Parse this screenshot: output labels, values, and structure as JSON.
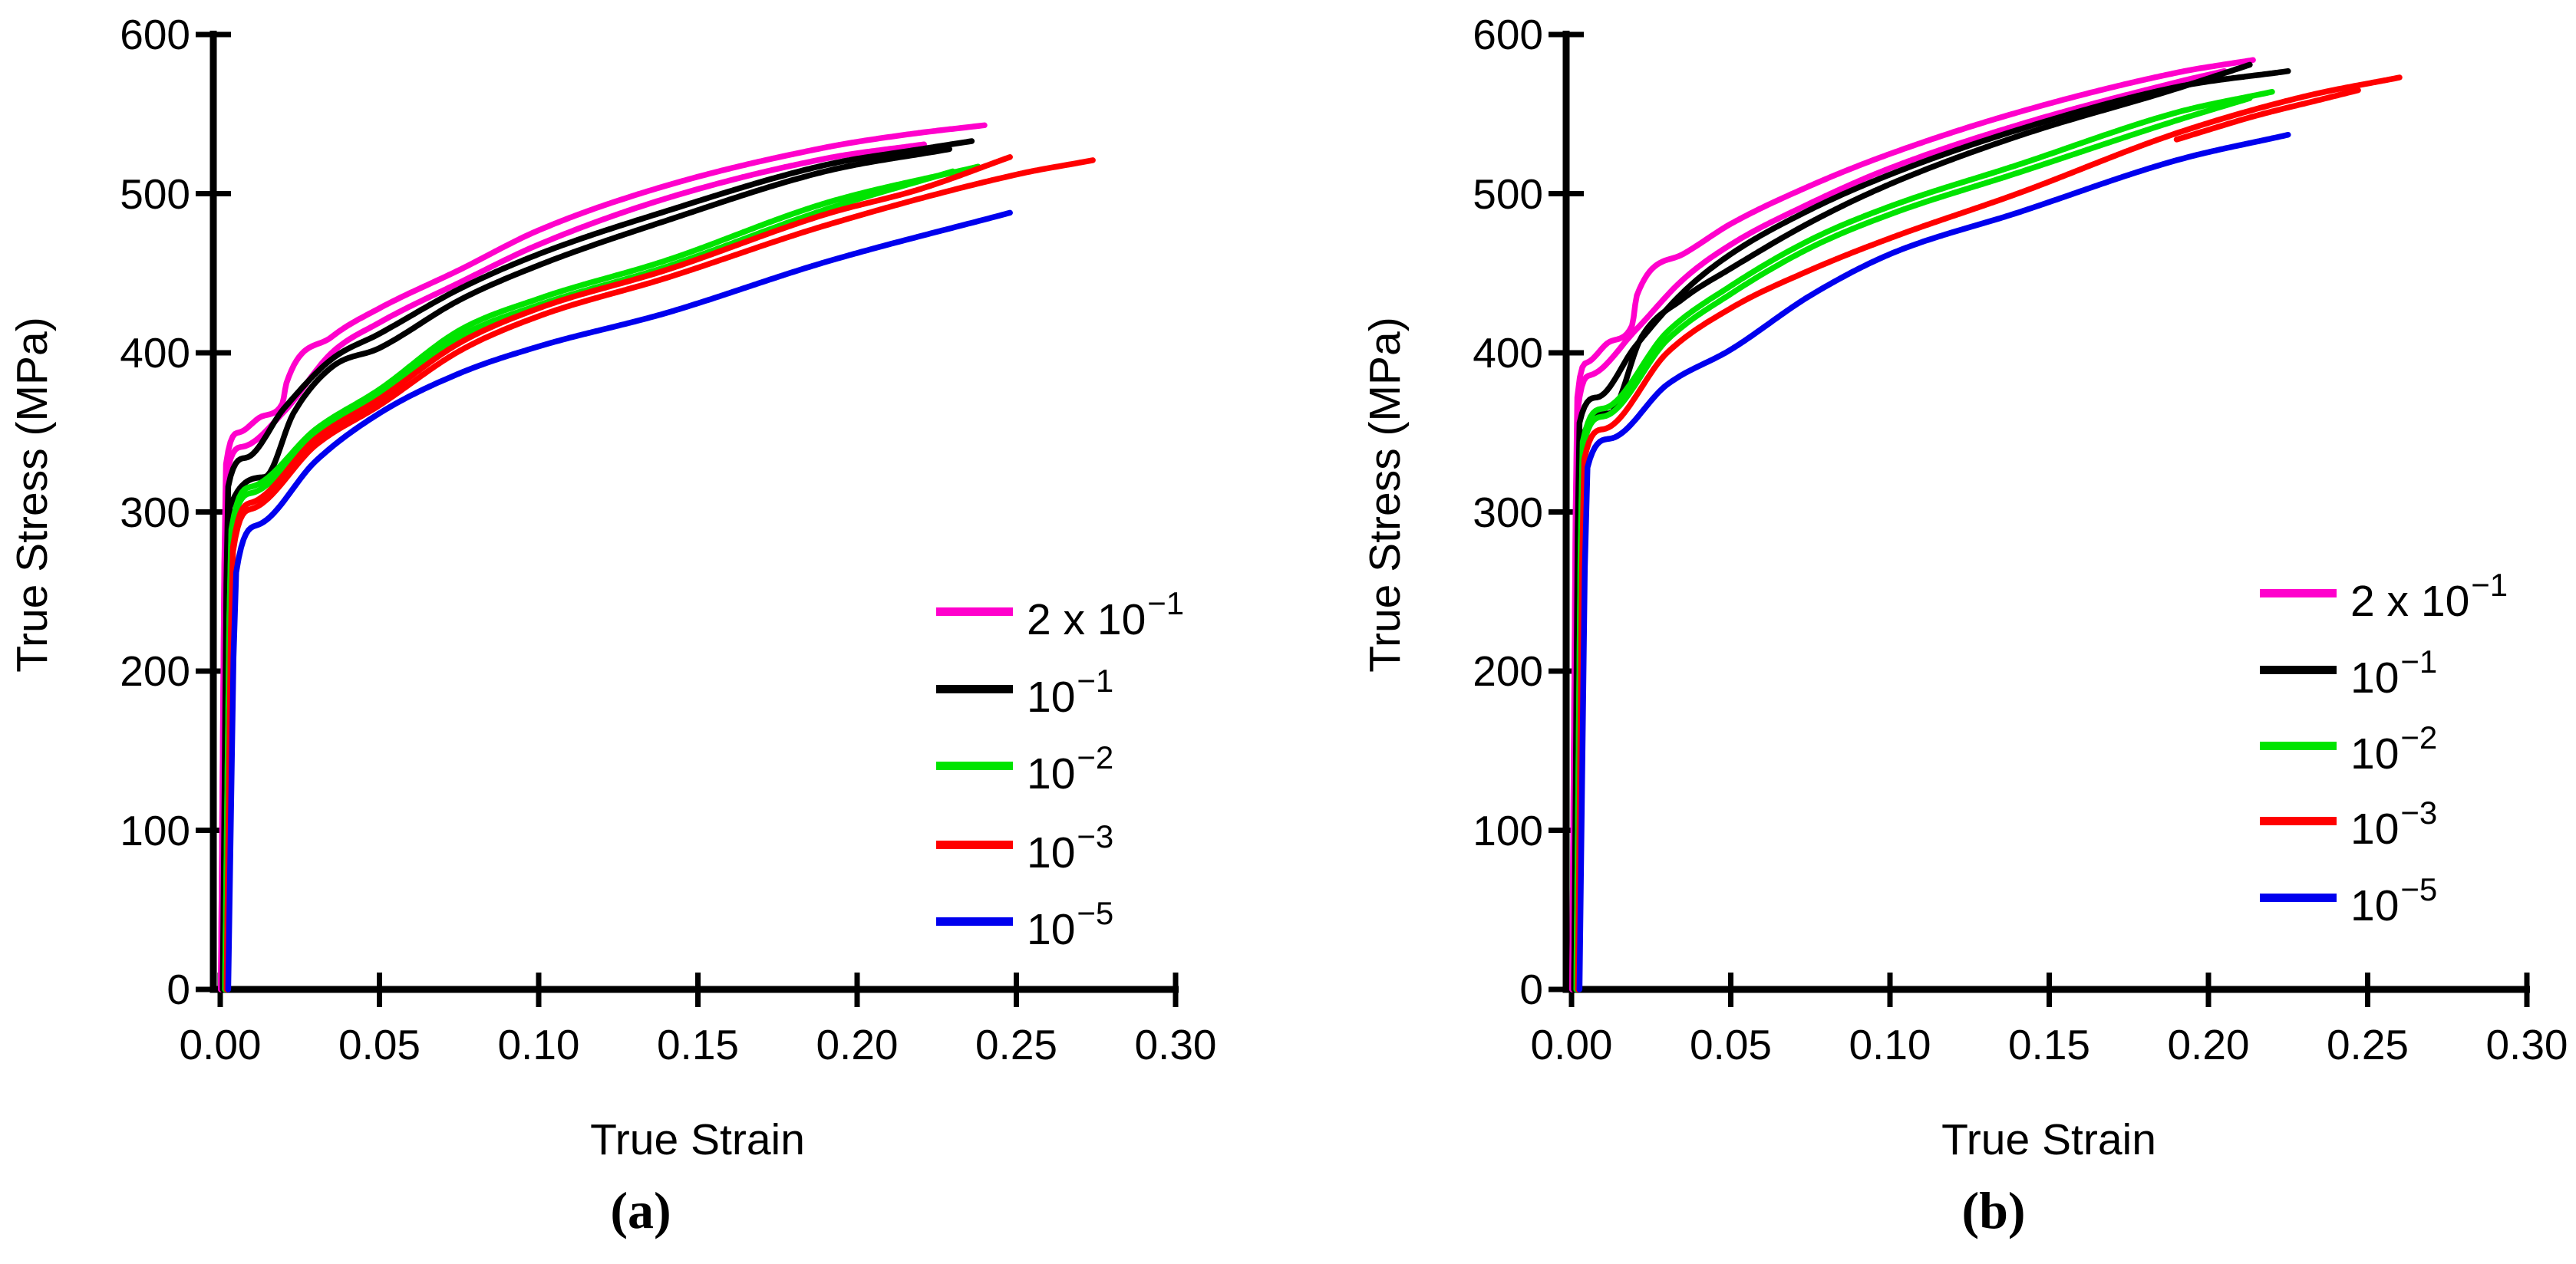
{
  "figure": {
    "background": "#ffffff",
    "text_color": "#000000"
  },
  "chart_data": [
    {
      "type": "line",
      "panel_label": "(a)",
      "xlabel": "True Strain",
      "ylabel": "True Stress (MPa)",
      "xlim": [
        0,
        0.3
      ],
      "ylim": [
        0,
        600
      ],
      "grid": false,
      "x_ticks": [
        0,
        0.05,
        0.1,
        0.15,
        0.2,
        0.25,
        0.3
      ],
      "x_tick_labels": [
        "0.00",
        "0.05",
        "0.10",
        "0.15",
        "0.20",
        "0.25",
        "0.30"
      ],
      "y_ticks": [
        0,
        100,
        200,
        300,
        400,
        500,
        600
      ],
      "y_tick_labels": [
        "0",
        "100",
        "200",
        "300",
        "400",
        "500",
        "600"
      ],
      "legend": {
        "position": "right-middle",
        "items": [
          {
            "base": "2 x 10",
            "exp": "−1",
            "color": "#FF00CC"
          },
          {
            "base": "10",
            "exp": "−1",
            "color": "#000000"
          },
          {
            "base": "10",
            "exp": "−2",
            "color": "#00E400"
          },
          {
            "base": "10",
            "exp": "−3",
            "color": "#FF0000"
          },
          {
            "base": "10",
            "exp": "−5",
            "color": "#0000EE"
          }
        ]
      },
      "series": [
        {
          "name": "rate-2e-1-run1",
          "rate": "2 x 10^-1",
          "color": "#FF00CC",
          "points": [
            [
              0.0002,
              0
            ],
            [
              0.0018,
              330
            ],
            [
              0.006,
              350
            ],
            [
              0.013,
              360
            ],
            [
              0.0195,
              368
            ],
            [
              0.0208,
              381
            ],
            [
              0.035,
              410
            ],
            [
              0.05,
              428
            ],
            [
              0.075,
              452
            ],
            [
              0.1,
              477
            ],
            [
              0.14,
              505
            ],
            [
              0.19,
              529
            ],
            [
              0.215,
              537
            ],
            [
              0.24,
              543
            ]
          ]
        },
        {
          "name": "rate-2e-1-run2",
          "rate": "2 x 10^-1",
          "color": "#FF00CC",
          "points": [
            [
              0.0002,
              0
            ],
            [
              0.0018,
              321
            ],
            [
              0.007,
              341
            ],
            [
              0.02,
              363
            ],
            [
              0.035,
              400
            ],
            [
              0.05,
              419
            ],
            [
              0.075,
              444
            ],
            [
              0.1,
              468
            ],
            [
              0.14,
              497
            ],
            [
              0.19,
              522
            ],
            [
              0.221,
              531
            ]
          ]
        },
        {
          "name": "rate-1e-1-run1",
          "rate": "10^-1",
          "color": "#000000",
          "points": [
            [
              0.0008,
              0
            ],
            [
              0.0025,
              316
            ],
            [
              0.008,
              334
            ],
            [
              0.02,
              365
            ],
            [
              0.035,
              396
            ],
            [
              0.05,
              412
            ],
            [
              0.075,
              440
            ],
            [
              0.1,
              462
            ],
            [
              0.14,
              489
            ],
            [
              0.19,
              518
            ],
            [
              0.22,
              528
            ],
            [
              0.236,
              533
            ]
          ]
        },
        {
          "name": "rate-1e-1-run2",
          "rate": "10^-1",
          "color": "#000000",
          "points": [
            [
              0.0008,
              0
            ],
            [
              0.003,
              303
            ],
            [
              0.014,
              322
            ],
            [
              0.023,
              362
            ],
            [
              0.035,
              391
            ],
            [
              0.05,
              403
            ],
            [
              0.075,
              433
            ],
            [
              0.1,
              455
            ],
            [
              0.14,
              483
            ],
            [
              0.19,
              514
            ],
            [
              0.229,
              528
            ]
          ]
        },
        {
          "name": "rate-1e-2-run1",
          "rate": "10^-2",
          "color": "#00E400",
          "points": [
            [
              0.0015,
              0
            ],
            [
              0.0035,
              289
            ],
            [
              0.01,
              316
            ],
            [
              0.03,
              352
            ],
            [
              0.05,
              377
            ],
            [
              0.075,
              414
            ],
            [
              0.1,
              434
            ],
            [
              0.14,
              458
            ],
            [
              0.19,
              494
            ],
            [
              0.238,
              517
            ]
          ]
        },
        {
          "name": "rate-1e-2-run2",
          "rate": "10^-2",
          "color": "#00E400",
          "points": [
            [
              0.0015,
              0
            ],
            [
              0.0035,
              286
            ],
            [
              0.01,
              312
            ],
            [
              0.03,
              348
            ],
            [
              0.05,
              373
            ],
            [
              0.075,
              410
            ],
            [
              0.1,
              430
            ],
            [
              0.14,
              454
            ],
            [
              0.19,
              490
            ],
            [
              0.23,
              514
            ]
          ]
        },
        {
          "name": "rate-1e-3-run1",
          "rate": "10^-3",
          "color": "#FF0000",
          "points": [
            [
              0.002,
              0
            ],
            [
              0.004,
              278
            ],
            [
              0.01,
              306
            ],
            [
              0.03,
              346
            ],
            [
              0.05,
              371
            ],
            [
              0.075,
              406
            ],
            [
              0.1,
              428
            ],
            [
              0.14,
              452
            ],
            [
              0.19,
              487
            ],
            [
              0.22,
              503
            ],
            [
              0.248,
              523
            ]
          ]
        },
        {
          "name": "rate-1e-3-run2",
          "rate": "10^-3",
          "color": "#FF0000",
          "points": [
            [
              0.002,
              0
            ],
            [
              0.004,
              275
            ],
            [
              0.01,
              302
            ],
            [
              0.03,
              342
            ],
            [
              0.05,
              367
            ],
            [
              0.075,
              401
            ],
            [
              0.1,
              423
            ],
            [
              0.14,
              447
            ],
            [
              0.19,
              480
            ],
            [
              0.25,
              512
            ],
            [
              0.274,
              521
            ]
          ]
        },
        {
          "name": "rate-1e-5-run1",
          "rate": "10^-5",
          "color": "#0000EE",
          "points": [
            [
              0.0025,
              0
            ],
            [
              0.005,
              262
            ],
            [
              0.012,
              292
            ],
            [
              0.03,
              332
            ],
            [
              0.05,
              362
            ],
            [
              0.075,
              387
            ],
            [
              0.1,
              404
            ],
            [
              0.14,
              425
            ],
            [
              0.19,
              457
            ],
            [
              0.248,
              488
            ]
          ]
        }
      ]
    },
    {
      "type": "line",
      "panel_label": "(b)",
      "xlabel": "True Strain",
      "ylabel": "True Stress (MPa)",
      "xlim": [
        0,
        0.3
      ],
      "ylim": [
        0,
        600
      ],
      "grid": false,
      "x_ticks": [
        0,
        0.05,
        0.1,
        0.15,
        0.2,
        0.25,
        0.3
      ],
      "x_tick_labels": [
        "0.00",
        "0.05",
        "0.10",
        "0.15",
        "0.20",
        "0.25",
        "0.30"
      ],
      "y_ticks": [
        0,
        100,
        200,
        300,
        400,
        500,
        600
      ],
      "y_tick_labels": [
        "0",
        "100",
        "200",
        "300",
        "400",
        "500",
        "600"
      ],
      "legend": {
        "position": "right-middle",
        "items": [
          {
            "base": "2 x 10",
            "exp": "−1",
            "color": "#FF00CC"
          },
          {
            "base": "10",
            "exp": "−1",
            "color": "#000000"
          },
          {
            "base": "10",
            "exp": "−2",
            "color": "#00E400"
          },
          {
            "base": "10",
            "exp": "−3",
            "color": "#FF0000"
          },
          {
            "base": "10",
            "exp": "−5",
            "color": "#0000EE"
          }
        ]
      },
      "series": [
        {
          "name": "rate-2e-1-run1",
          "rate": "2 x 10^-1",
          "color": "#FF00CC",
          "points": [
            [
              0.0002,
              0
            ],
            [
              0.0018,
              372
            ],
            [
              0.005,
              394
            ],
            [
              0.012,
              407
            ],
            [
              0.019,
              417
            ],
            [
              0.0205,
              436
            ],
            [
              0.035,
              462
            ],
            [
              0.05,
              481
            ],
            [
              0.075,
              505
            ],
            [
              0.1,
              525
            ],
            [
              0.14,
              551
            ],
            [
              0.19,
              576
            ],
            [
              0.214,
              584
            ]
          ]
        },
        {
          "name": "rate-2e-1-run2",
          "rate": "2 x 10^-1",
          "color": "#FF00CC",
          "points": [
            [
              0.0002,
              0
            ],
            [
              0.0018,
              362
            ],
            [
              0.006,
              386
            ],
            [
              0.02,
              414
            ],
            [
              0.035,
              446
            ],
            [
              0.05,
              468
            ],
            [
              0.075,
              494
            ],
            [
              0.1,
              516
            ],
            [
              0.14,
              543
            ],
            [
              0.19,
              570
            ],
            [
              0.205,
              577
            ]
          ]
        },
        {
          "name": "rate-1e-1-run1",
          "rate": "10^-1",
          "color": "#000000",
          "points": [
            [
              0.0008,
              0
            ],
            [
              0.0025,
              356
            ],
            [
              0.008,
              372
            ],
            [
              0.02,
              404
            ],
            [
              0.035,
              438
            ],
            [
              0.05,
              462
            ],
            [
              0.075,
              490
            ],
            [
              0.1,
              512
            ],
            [
              0.14,
              540
            ],
            [
              0.19,
              567
            ],
            [
              0.225,
              577
            ]
          ]
        },
        {
          "name": "rate-1e-1-run2",
          "rate": "10^-1",
          "color": "#000000",
          "points": [
            [
              0.0008,
              0
            ],
            [
              0.003,
              345
            ],
            [
              0.012,
              362
            ],
            [
              0.022,
              410
            ],
            [
              0.035,
              434
            ],
            [
              0.05,
              453
            ],
            [
              0.075,
              482
            ],
            [
              0.1,
              506
            ],
            [
              0.14,
              536
            ],
            [
              0.19,
              566
            ],
            [
              0.213,
              581
            ]
          ]
        },
        {
          "name": "rate-1e-2-run1",
          "rate": "10^-2",
          "color": "#00E400",
          "points": [
            [
              0.0015,
              0
            ],
            [
              0.0035,
              340
            ],
            [
              0.01,
              360
            ],
            [
              0.03,
              408
            ],
            [
              0.05,
              437
            ],
            [
              0.075,
              466
            ],
            [
              0.1,
              487
            ],
            [
              0.14,
              513
            ],
            [
              0.19,
              546
            ],
            [
              0.213,
              560
            ]
          ]
        },
        {
          "name": "rate-1e-2-run2",
          "rate": "10^-2",
          "color": "#00E400",
          "points": [
            [
              0.0015,
              0
            ],
            [
              0.0035,
              344
            ],
            [
              0.01,
              365
            ],
            [
              0.03,
              413
            ],
            [
              0.05,
              442
            ],
            [
              0.075,
              471
            ],
            [
              0.1,
              492
            ],
            [
              0.14,
              518
            ],
            [
              0.19,
              551
            ],
            [
              0.22,
              564
            ]
          ]
        },
        {
          "name": "rate-1e-3-run1",
          "rate": "10^-3",
          "color": "#FF0000",
          "points": [
            [
              0.002,
              0
            ],
            [
              0.004,
              333
            ],
            [
              0.01,
              352
            ],
            [
              0.03,
              400
            ],
            [
              0.05,
              428
            ],
            [
              0.075,
              452
            ],
            [
              0.1,
              472
            ],
            [
              0.14,
              500
            ],
            [
              0.19,
              538
            ],
            [
              0.23,
              561
            ],
            [
              0.26,
              573
            ]
          ]
        },
        {
          "name": "rate-1e-3-fork",
          "rate": "10^-3",
          "color": "#FF0000",
          "points": [
            [
              0.19,
              534
            ],
            [
              0.215,
              549
            ],
            [
              0.235,
              559
            ],
            [
              0.247,
              565
            ]
          ]
        },
        {
          "name": "rate-1e-5-run1",
          "rate": "10^-5",
          "color": "#0000EE",
          "points": [
            [
              0.0025,
              0
            ],
            [
              0.005,
              328
            ],
            [
              0.012,
              346
            ],
            [
              0.03,
              380
            ],
            [
              0.05,
              402
            ],
            [
              0.075,
              436
            ],
            [
              0.1,
              462
            ],
            [
              0.14,
              488
            ],
            [
              0.19,
              521
            ],
            [
              0.225,
              537
            ]
          ]
        }
      ]
    }
  ]
}
